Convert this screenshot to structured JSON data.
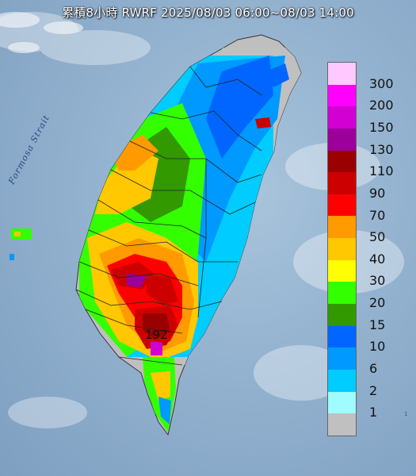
{
  "map": {
    "title": "累積8小時 RWRF 2025/08/03 06:00~08/03 14:00",
    "strait_label": "Formosa Strait",
    "peak_value": "192",
    "edge_mark": "1",
    "legend": [
      {
        "value": "300",
        "color": "#ffc8ff"
      },
      {
        "value": "200",
        "color": "#ff00ff"
      },
      {
        "value": "150",
        "color": "#d200d2"
      },
      {
        "value": "130",
        "color": "#9b009b"
      },
      {
        "value": "110",
        "color": "#9b0000"
      },
      {
        "value": "90",
        "color": "#cd0000"
      },
      {
        "value": "70",
        "color": "#ff0000"
      },
      {
        "value": "50",
        "color": "#ff9a00"
      },
      {
        "value": "40",
        "color": "#ffc800"
      },
      {
        "value": "30",
        "color": "#ffff00"
      },
      {
        "value": "20",
        "color": "#33ff00"
      },
      {
        "value": "15",
        "color": "#329900"
      },
      {
        "value": "10",
        "color": "#0066ff"
      },
      {
        "value": "6",
        "color": "#0099ff"
      },
      {
        "value": "2",
        "color": "#00ccff"
      },
      {
        "value": "1",
        "color": "#9ffcff"
      },
      {
        "value": "",
        "color": "#c0c0c0"
      }
    ]
  }
}
